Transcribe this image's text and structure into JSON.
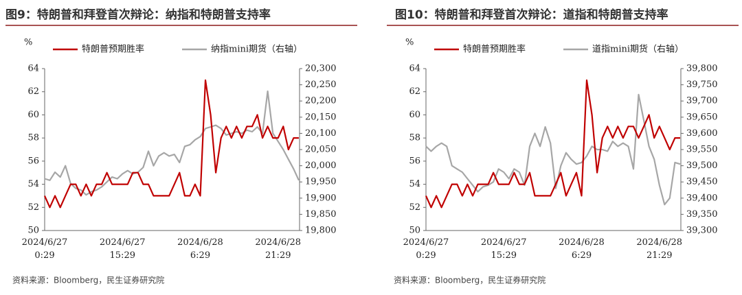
{
  "chart_data": [
    {
      "type": "line",
      "title": "图9：特朗普和拜登首次辩论：纳指和特朗普支持率",
      "y_unit": "%",
      "source": "资料来源：Bloomberg，民生证券研究院",
      "categories": [
        "2024/6/27\n0:29",
        null,
        null,
        null,
        null,
        null,
        null,
        null,
        null,
        null,
        null,
        null,
        null,
        null,
        null,
        "2024/6/27\n15:29",
        null,
        null,
        null,
        null,
        null,
        null,
        null,
        null,
        null,
        null,
        null,
        null,
        null,
        null,
        "2024/6/28\n6:29",
        null,
        null,
        null,
        null,
        null,
        null,
        null,
        null,
        null,
        null,
        null,
        null,
        null,
        null,
        "2024/6/28\n21:29",
        null,
        null,
        null,
        null
      ],
      "ylim": [
        50,
        64
      ],
      "yticks": [
        50,
        52,
        54,
        56,
        58,
        60,
        62,
        64
      ],
      "y2lim": [
        19800,
        20300
      ],
      "y2ticks": [
        {
          "value": 19800,
          "label": "19,800"
        },
        {
          "value": 19850,
          "label": "19,850"
        },
        {
          "value": 19900,
          "label": "19,900"
        },
        {
          "value": 19950,
          "label": "19,950"
        },
        {
          "value": 20000,
          "label": "20,000"
        },
        {
          "value": 20050,
          "label": "20,050"
        },
        {
          "value": 20100,
          "label": "20,100"
        },
        {
          "value": 20150,
          "label": "20,150"
        },
        {
          "value": 20200,
          "label": "20,200"
        },
        {
          "value": 20250,
          "label": "20,250"
        },
        {
          "value": 20300,
          "label": "20,300"
        }
      ],
      "series": [
        {
          "name": "特朗普预期胜率",
          "color": "#c00000",
          "values": [
            53,
            52,
            53,
            52,
            53,
            54,
            54,
            53,
            54,
            53,
            54,
            54,
            55,
            54,
            54,
            54,
            54,
            55,
            55,
            54,
            54,
            53,
            53,
            53,
            53,
            54,
            55,
            53,
            53,
            54,
            53,
            63,
            60,
            55,
            58,
            59,
            58,
            59,
            58,
            59,
            59,
            60,
            58,
            59,
            58,
            58,
            59,
            57,
            58,
            58
          ]
        },
        {
          "name": "纳指mini期货（右轴）",
          "color": "#a6a6a6",
          "axis": "y2",
          "values": [
            19960,
            19955,
            19980,
            19965,
            20000,
            19945,
            19930,
            19925,
            19910,
            19920,
            19925,
            19935,
            19950,
            19965,
            19960,
            19975,
            19985,
            19975,
            19980,
            19995,
            20045,
            20000,
            20030,
            20040,
            20030,
            20035,
            20010,
            20060,
            20065,
            20080,
            20090,
            20115,
            20120,
            20125,
            20115,
            20095,
            20100,
            20105,
            20100,
            20110,
            20105,
            20120,
            20100,
            20230,
            20100,
            20075,
            20050,
            20020,
            19990,
            19955
          ]
        }
      ]
    },
    {
      "type": "line",
      "title": "图10：特朗普和拜登首次辩论：道指和特朗普支持率",
      "y_unit": "%",
      "source": "资料来源：Bloomberg，民生证券研究院",
      "categories": [
        "2024/6/27\n0:29",
        null,
        null,
        null,
        null,
        null,
        null,
        null,
        null,
        null,
        null,
        null,
        null,
        null,
        null,
        "2024/6/27\n15:29",
        null,
        null,
        null,
        null,
        null,
        null,
        null,
        null,
        null,
        null,
        null,
        null,
        null,
        null,
        "2024/6/28\n6:29",
        null,
        null,
        null,
        null,
        null,
        null,
        null,
        null,
        null,
        null,
        null,
        null,
        null,
        null,
        "2024/6/28\n21:29",
        null,
        null,
        null,
        null
      ],
      "ylim": [
        50,
        64
      ],
      "yticks": [
        50,
        52,
        54,
        56,
        58,
        60,
        62,
        64
      ],
      "y2lim": [
        39300,
        39800
      ],
      "y2ticks": [
        {
          "value": 39300,
          "label": "39,300"
        },
        {
          "value": 39350,
          "label": "39,350"
        },
        {
          "value": 39400,
          "label": "39,400"
        },
        {
          "value": 39450,
          "label": "39,450"
        },
        {
          "value": 39500,
          "label": "39,500"
        },
        {
          "value": 39550,
          "label": "39,550"
        },
        {
          "value": 39600,
          "label": "39,600"
        },
        {
          "value": 39650,
          "label": "39,650"
        },
        {
          "value": 39700,
          "label": "39,700"
        },
        {
          "value": 39750,
          "label": "39,750"
        },
        {
          "value": 39800,
          "label": "39,800"
        }
      ],
      "series": [
        {
          "name": "特朗普预期胜率",
          "color": "#c00000",
          "values": [
            53,
            52,
            53,
            52,
            53,
            54,
            54,
            53,
            54,
            53,
            54,
            54,
            54,
            55,
            54,
            54,
            54,
            55,
            54,
            54,
            55,
            53,
            53,
            53,
            53,
            54,
            55,
            53,
            54,
            55,
            53,
            63,
            60,
            55,
            58,
            59,
            58,
            59,
            58,
            59,
            59,
            58,
            59,
            60,
            58,
            59,
            58,
            57,
            58,
            58
          ]
        },
        {
          "name": "道指mini期货（右轴）",
          "color": "#a6a6a6",
          "axis": "y2",
          "values": [
            39560,
            39545,
            39560,
            39570,
            39560,
            39500,
            39490,
            39480,
            39460,
            39440,
            39420,
            39435,
            39440,
            39450,
            39490,
            39480,
            39460,
            39490,
            39480,
            39440,
            39560,
            39600,
            39560,
            39620,
            39570,
            39430,
            39500,
            39540,
            39520,
            39505,
            39510,
            39530,
            39560,
            39550,
            39550,
            39545,
            39575,
            39560,
            39570,
            39560,
            39490,
            39720,
            39640,
            39560,
            39520,
            39440,
            39380,
            39400,
            39510,
            39505
          ]
        }
      ]
    }
  ]
}
